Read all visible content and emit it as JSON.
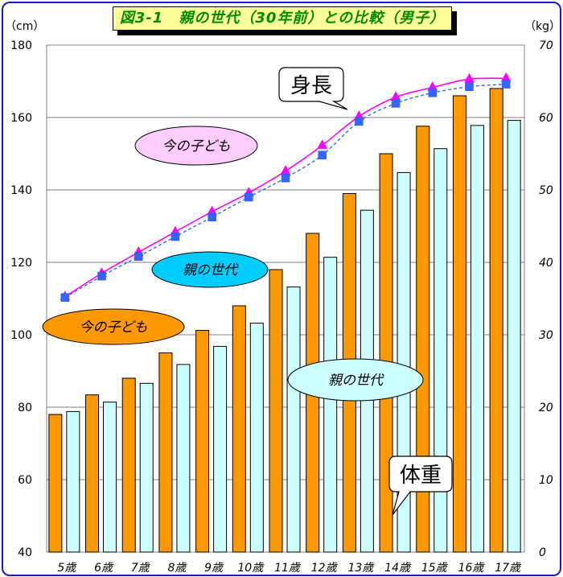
{
  "chart_data": {
    "type": "bar",
    "title": "図3-1　親の世代（30年前）との比較（男子）",
    "categories": [
      "5歳",
      "6歳",
      "7歳",
      "8歳",
      "9歳",
      "10歳",
      "11歳",
      "12歳",
      "13歳",
      "14歳",
      "15歳",
      "16歳",
      "17歳"
    ],
    "left_axis": {
      "unit": "（cm）",
      "range": [
        40,
        180
      ],
      "ticks": [
        40,
        60,
        80,
        100,
        120,
        140,
        160,
        180
      ]
    },
    "right_axis": {
      "unit": "（kg）",
      "range": [
        0,
        70
      ],
      "ticks": [
        0,
        10,
        20,
        30,
        40,
        50,
        60,
        70
      ]
    },
    "grid": true,
    "bar_series": [
      {
        "name": "今の子ども",
        "axis": "right",
        "color": "#ff9900",
        "values": [
          19.0,
          21.7,
          24.0,
          27.5,
          30.6,
          34.0,
          39.0,
          44.0,
          49.5,
          55.0,
          58.8,
          63.0,
          64.0
        ]
      },
      {
        "name": "親の世代",
        "axis": "right",
        "color": "#ccffff",
        "values": [
          19.4,
          20.7,
          23.3,
          25.9,
          28.4,
          31.6,
          36.6,
          40.7,
          47.2,
          52.4,
          55.7,
          58.9,
          59.6
        ]
      }
    ],
    "line_series": [
      {
        "name": "今の子ども",
        "axis": "left",
        "color": "#ff00ff",
        "marker": "triangle",
        "values": [
          110.5,
          117.0,
          122.8,
          128.4,
          134.0,
          139.2,
          145.2,
          152.3,
          160.3,
          165.6,
          168.3,
          170.6,
          170.8
        ]
      },
      {
        "name": "親の世代",
        "axis": "left",
        "color": "#3366ff",
        "marker": "square",
        "dashed": true,
        "values": [
          110.3,
          116.2,
          121.6,
          127.1,
          132.5,
          138.0,
          143.3,
          149.6,
          158.9,
          163.9,
          166.8,
          168.5,
          169.2
        ]
      }
    ],
    "annotations": {
      "height_label": "身長",
      "weight_label": "体重",
      "line_now": "今の子ども",
      "line_parent": "親の世代",
      "bar_now": "今の子ども",
      "bar_parent": "親の世代"
    }
  },
  "colors": {
    "border": "#1a1acc",
    "title_text": "#008a00",
    "title_bg": "#ffff99",
    "ellipse_pink": "#ffccff",
    "ellipse_cyan": "#00ccff",
    "ellipse_orange": "#ff9900",
    "ellipse_lightcyan": "#ccffff"
  }
}
